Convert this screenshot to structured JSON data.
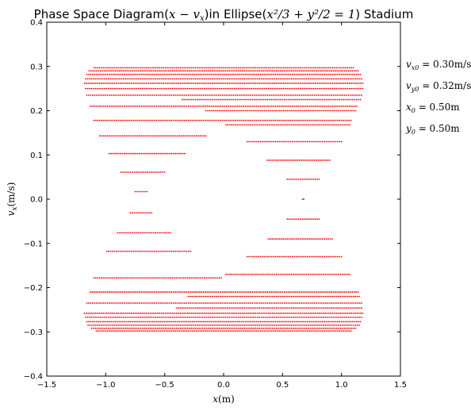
{
  "chart_data": {
    "type": "scatter",
    "title": "Phase Space Diagram(x − v",
    "title_parts": {
      "prefix": "Phase Space Diagram(",
      "math1": "x − v",
      "math1_sub": "x",
      "middle": ")in Ellipse(",
      "math2": "x²/3 + y²/2 = 1",
      "suffix": ") Stadium"
    },
    "xlabel": "x(m)",
    "ylabel": "v_x(m/s)",
    "xlim": [
      -1.5,
      1.5
    ],
    "ylim": [
      -0.4,
      0.4
    ],
    "xticks": [
      "−1.5",
      "−1.0",
      "−0.5",
      "0.0",
      "0.5",
      "1.0",
      "1.5"
    ],
    "xtick_values": [
      -1.5,
      -1.0,
      -0.5,
      0.0,
      0.5,
      1.0,
      1.5
    ],
    "yticks": [
      "−0.4",
      "−0.3",
      "−0.2",
      "−0.1",
      "0.0",
      "0.1",
      "0.2",
      "0.3",
      "0.4"
    ],
    "ytick_values": [
      -0.4,
      -0.3,
      -0.2,
      -0.1,
      0.0,
      0.1,
      0.2,
      0.3,
      0.4
    ],
    "marker_color": "#ff0000",
    "grid": false,
    "annotations": [
      {
        "text": "v",
        "sub": "x0",
        "rest": " = 0.30m/s"
      },
      {
        "text": "v",
        "sub": "y0",
        "rest": " = 0.32m/s"
      },
      {
        "text": "x",
        "sub": "0",
        "rest": " = 0.50m"
      },
      {
        "text": "y",
        "sub": "0",
        "rest": " = 0.50m"
      }
    ],
    "series": [
      {
        "segments": [
          {
            "y": 0.297,
            "x_start": -1.1,
            "x_end": 1.1
          },
          {
            "y": 0.29,
            "x_start": -1.14,
            "x_end": 1.14
          },
          {
            "y": 0.282,
            "x_start": -1.16,
            "x_end": 1.16
          },
          {
            "y": 0.272,
            "x_start": -1.17,
            "x_end": 1.17
          },
          {
            "y": 0.262,
            "x_start": -1.18,
            "x_end": 1.18
          },
          {
            "y": 0.25,
            "x_start": -1.17,
            "x_end": 1.18
          },
          {
            "y": 0.235,
            "x_start": -1.16,
            "x_end": 1.17
          },
          {
            "y": 0.225,
            "x_start": -0.35,
            "x_end": 1.16
          },
          {
            "y": 0.21,
            "x_start": -1.13,
            "x_end": 1.13
          },
          {
            "y": 0.2,
            "x_start": -0.15,
            "x_end": 1.12
          },
          {
            "y": 0.178,
            "x_start": -1.1,
            "x_end": 1.08
          },
          {
            "y": 0.168,
            "x_start": 0.02,
            "x_end": 1.07
          },
          {
            "y": 0.143,
            "x_start": -1.05,
            "x_end": -0.15
          },
          {
            "y": 0.13,
            "x_start": 0.2,
            "x_end": 1.0
          },
          {
            "y": 0.103,
            "x_start": -0.97,
            "x_end": -0.33
          },
          {
            "y": 0.088,
            "x_start": 0.37,
            "x_end": 0.9
          },
          {
            "y": 0.061,
            "x_start": -0.87,
            "x_end": -0.5
          },
          {
            "y": 0.045,
            "x_start": 0.54,
            "x_end": 0.81
          },
          {
            "y": 0.017,
            "x_start": -0.75,
            "x_end": -0.65
          },
          {
            "y": 0.0,
            "x_start": 0.67,
            "x_end": 0.68
          },
          {
            "y": -0.031,
            "x_start": -0.79,
            "x_end": -0.61
          },
          {
            "y": -0.045,
            "x_start": 0.54,
            "x_end": 0.81
          },
          {
            "y": -0.076,
            "x_start": -0.9,
            "x_end": -0.45
          },
          {
            "y": -0.09,
            "x_start": 0.38,
            "x_end": 0.92
          },
          {
            "y": -0.118,
            "x_start": -0.99,
            "x_end": -0.28
          },
          {
            "y": -0.13,
            "x_start": 0.2,
            "x_end": 1.0
          },
          {
            "y": -0.17,
            "x_start": 0.02,
            "x_end": 1.07
          },
          {
            "y": -0.178,
            "x_start": -1.1,
            "x_end": -0.02
          },
          {
            "y": -0.21,
            "x_start": -1.13,
            "x_end": 1.14
          },
          {
            "y": -0.22,
            "x_start": -0.3,
            "x_end": 1.15
          },
          {
            "y": -0.235,
            "x_start": -1.16,
            "x_end": 1.17
          },
          {
            "y": -0.246,
            "x_start": -0.4,
            "x_end": 1.17
          },
          {
            "y": -0.258,
            "x_start": -1.18,
            "x_end": 1.18
          },
          {
            "y": -0.267,
            "x_start": -1.17,
            "x_end": 1.17
          },
          {
            "y": -0.277,
            "x_start": -1.16,
            "x_end": 1.16
          },
          {
            "y": -0.285,
            "x_start": -1.15,
            "x_end": 1.15
          },
          {
            "y": -0.292,
            "x_start": -1.12,
            "x_end": 1.12
          },
          {
            "y": -0.298,
            "x_start": -1.08,
            "x_end": 1.08
          }
        ]
      }
    ]
  }
}
